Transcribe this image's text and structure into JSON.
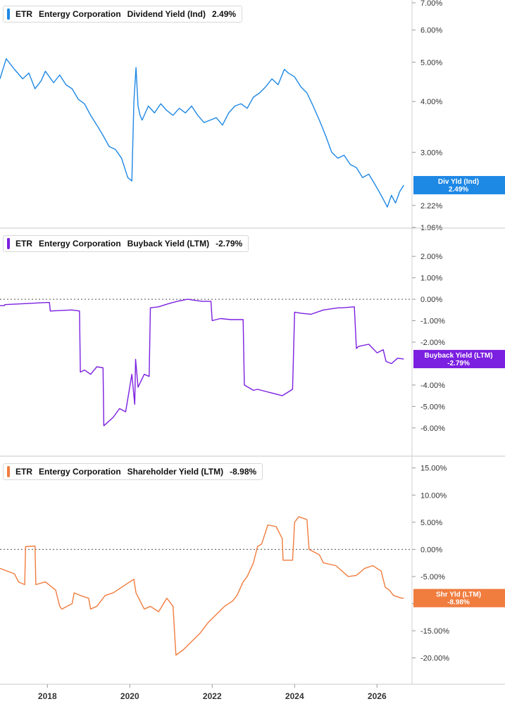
{
  "x_axis": {
    "ticks": [
      "2018",
      "2020",
      "2022",
      "2024",
      "2026"
    ],
    "tick_years": [
      2018,
      2020,
      2022,
      2024,
      2026
    ],
    "start": 2016.85,
    "end": 2026.85
  },
  "chart_data": [
    {
      "type": "line",
      "title": {
        "ticker": "ETR",
        "company": "Entergy Corporation",
        "metric": "Dividend Yield (Ind)",
        "value": "2.49%"
      },
      "log_scale": true,
      "ylim": [
        1.96,
        7.0
      ],
      "y_ticks": [
        7.0,
        6.0,
        5.0,
        4.0,
        3.0,
        2.22,
        1.96
      ],
      "y_tick_labels": [
        "7.00%",
        "6.00%",
        "5.00%",
        "4.00%",
        "3.00%",
        "2.22%",
        "1.96%"
      ],
      "color": "#1e88e5",
      "end_tag": {
        "label": "Div Yld (Ind)",
        "value": "2.49%",
        "y": 2.49
      },
      "zero_line": false,
      "series": [
        {
          "x": [
            2016.85,
            2017.0,
            2017.2,
            2017.4,
            2017.55,
            2017.7,
            2017.85,
            2017.95,
            2018.05,
            2018.15,
            2018.3,
            2018.45,
            2018.6,
            2018.75,
            2018.9,
            2019.05,
            2019.2,
            2019.35,
            2019.5,
            2019.65,
            2019.8,
            2019.95,
            2020.05,
            2020.1,
            2020.15,
            2020.2,
            2020.25,
            2020.3,
            2020.45,
            2020.6,
            2020.75,
            2020.9,
            2021.05,
            2021.2,
            2021.35,
            2021.5,
            2021.65,
            2021.8,
            2021.95,
            2022.1,
            2022.25,
            2022.4,
            2022.55,
            2022.7,
            2022.85,
            2023.0,
            2023.15,
            2023.3,
            2023.45,
            2023.6,
            2023.75,
            2023.85,
            2024.0,
            2024.15,
            2024.3,
            2024.45,
            2024.6,
            2024.75,
            2024.9,
            2025.05,
            2025.2,
            2025.35,
            2025.5,
            2025.65,
            2025.8,
            2025.95,
            2026.05,
            2026.15,
            2026.25,
            2026.35,
            2026.45,
            2026.55,
            2026.65
          ],
          "y": [
            4.55,
            5.1,
            4.8,
            4.55,
            4.7,
            4.3,
            4.5,
            4.75,
            4.6,
            4.45,
            4.65,
            4.4,
            4.3,
            4.05,
            3.95,
            3.7,
            3.5,
            3.3,
            3.1,
            3.05,
            2.9,
            2.6,
            2.55,
            4.0,
            4.85,
            3.9,
            3.7,
            3.6,
            3.9,
            3.75,
            3.95,
            3.8,
            3.7,
            3.85,
            3.75,
            3.9,
            3.7,
            3.55,
            3.6,
            3.65,
            3.5,
            3.75,
            3.9,
            3.95,
            3.85,
            4.1,
            4.2,
            4.35,
            4.55,
            4.4,
            4.8,
            4.7,
            4.6,
            4.35,
            4.2,
            3.9,
            3.6,
            3.3,
            3.0,
            2.9,
            2.95,
            2.8,
            2.75,
            2.6,
            2.65,
            2.5,
            2.4,
            2.3,
            2.2,
            2.35,
            2.25,
            2.4,
            2.49
          ]
        }
      ]
    },
    {
      "type": "line",
      "title": {
        "ticker": "ETR",
        "company": "Entergy Corporation",
        "metric": "Buyback Yield (LTM)",
        "value": "-2.79%"
      },
      "log_scale": false,
      "ylim": [
        -6.4,
        2.4
      ],
      "y_ticks": [
        2.0,
        1.0,
        0.0,
        -1.0,
        -2.0,
        -4.0,
        -5.0,
        -6.0
      ],
      "y_tick_labels": [
        "2.00%",
        "1.00%",
        "0.00%",
        "-1.00%",
        "-2.00%",
        "-4.00%",
        "-5.00%",
        "-6.00%"
      ],
      "color": "#7b1fe0",
      "end_tag": {
        "label": "Buyback Yield (LTM)",
        "value": "-2.79%",
        "y": -2.79
      },
      "zero_line": true,
      "series": [
        {
          "x": [
            2016.85,
            2016.95,
            2016.97,
            2017.5,
            2017.98,
            2018.05,
            2018.07,
            2018.6,
            2018.78,
            2018.8,
            2018.9,
            2019.05,
            2019.2,
            2019.35,
            2019.37,
            2019.6,
            2019.75,
            2019.9,
            2020.05,
            2020.12,
            2020.14,
            2020.2,
            2020.35,
            2020.47,
            2020.5,
            2020.7,
            2020.95,
            2021.15,
            2021.4,
            2021.75,
            2021.97,
            2022.0,
            2022.2,
            2022.45,
            2022.75,
            2022.78,
            2023.0,
            2023.1,
            2023.4,
            2023.7,
            2023.95,
            2024.0,
            2024.15,
            2024.4,
            2024.7,
            2025.05,
            2025.15,
            2025.45,
            2025.5,
            2025.55,
            2025.8,
            2026.0,
            2026.15,
            2026.22,
            2026.35,
            2026.5,
            2026.65
          ],
          "y": [
            -0.3,
            -0.3,
            -0.25,
            -0.2,
            -0.15,
            -0.15,
            -0.55,
            -0.5,
            -0.55,
            -3.4,
            -3.3,
            -3.5,
            -3.15,
            -3.2,
            -5.9,
            -5.5,
            -5.1,
            -5.25,
            -3.5,
            -4.9,
            -2.8,
            -4.1,
            -3.5,
            -3.6,
            -0.4,
            -0.35,
            -0.2,
            -0.1,
            0.0,
            -0.1,
            -0.1,
            -1.0,
            -0.9,
            -0.95,
            -0.95,
            -4.0,
            -4.25,
            -4.2,
            -4.35,
            -4.5,
            -4.2,
            -0.6,
            -0.65,
            -0.7,
            -0.5,
            -0.4,
            -0.4,
            -0.35,
            -2.3,
            -2.2,
            -2.1,
            -2.5,
            -2.35,
            -2.9,
            -3.0,
            -2.75,
            -2.79
          ]
        }
      ]
    },
    {
      "type": "line",
      "title": {
        "ticker": "ETR",
        "company": "Entergy Corporation",
        "metric": "Shareholder Yield (LTM)",
        "value": "-8.98%"
      },
      "log_scale": false,
      "ylim": [
        -22.0,
        16.0
      ],
      "y_ticks": [
        15.0,
        10.0,
        5.0,
        0.0,
        -5.0,
        -10.0,
        -15.0,
        -20.0
      ],
      "y_tick_labels": [
        "15.00%",
        "10.00%",
        "5.00%",
        "0.00%",
        "-5.00%",
        "-10.00%",
        "-15.00%",
        "-20.00%"
      ],
      "color": "#f07c3e",
      "end_tag": {
        "label": "Shr Yld (LTM)",
        "value": "-8.98%",
        "y": -8.98
      },
      "zero_line": true,
      "series": [
        {
          "x": [
            2016.85,
            2017.2,
            2017.3,
            2017.45,
            2017.47,
            2017.7,
            2017.72,
            2017.95,
            2018.2,
            2018.3,
            2018.35,
            2018.6,
            2018.65,
            2018.8,
            2019.0,
            2019.05,
            2019.2,
            2019.4,
            2019.6,
            2019.8,
            2020.0,
            2020.1,
            2020.15,
            2020.35,
            2020.5,
            2020.7,
            2020.9,
            2021.05,
            2021.1,
            2021.12,
            2021.3,
            2021.5,
            2021.7,
            2021.9,
            2022.1,
            2022.3,
            2022.5,
            2022.6,
            2022.75,
            2022.85,
            2023.0,
            2023.1,
            2023.2,
            2023.35,
            2023.55,
            2023.7,
            2023.72,
            2023.95,
            2024.0,
            2024.1,
            2024.3,
            2024.35,
            2024.6,
            2024.7,
            2025.0,
            2025.3,
            2025.5,
            2025.7,
            2025.9,
            2026.0,
            2026.1,
            2026.2,
            2026.3,
            2026.4,
            2026.6,
            2026.65
          ],
          "y": [
            -3.5,
            -4.5,
            -6.0,
            -6.5,
            0.5,
            0.6,
            -6.5,
            -6.0,
            -7.5,
            -10.5,
            -11.0,
            -10.0,
            -8.0,
            -8.5,
            -9.0,
            -11.0,
            -10.5,
            -8.5,
            -8.0,
            -7.0,
            -6.0,
            -5.5,
            -8.0,
            -11.0,
            -10.5,
            -11.5,
            -9.0,
            -10.5,
            -17.0,
            -19.5,
            -18.5,
            -17.0,
            -15.5,
            -13.5,
            -12.0,
            -10.5,
            -9.5,
            -8.5,
            -6.0,
            -5.0,
            -2.5,
            0.5,
            1.0,
            4.5,
            4.2,
            2.0,
            -2.0,
            -2.0,
            5.0,
            6.0,
            5.5,
            0.0,
            -1.0,
            -2.5,
            -3.0,
            -5.0,
            -4.8,
            -3.5,
            -3.0,
            -3.5,
            -4.0,
            -7.0,
            -7.5,
            -8.5,
            -9.0,
            -8.98
          ]
        }
      ]
    }
  ]
}
